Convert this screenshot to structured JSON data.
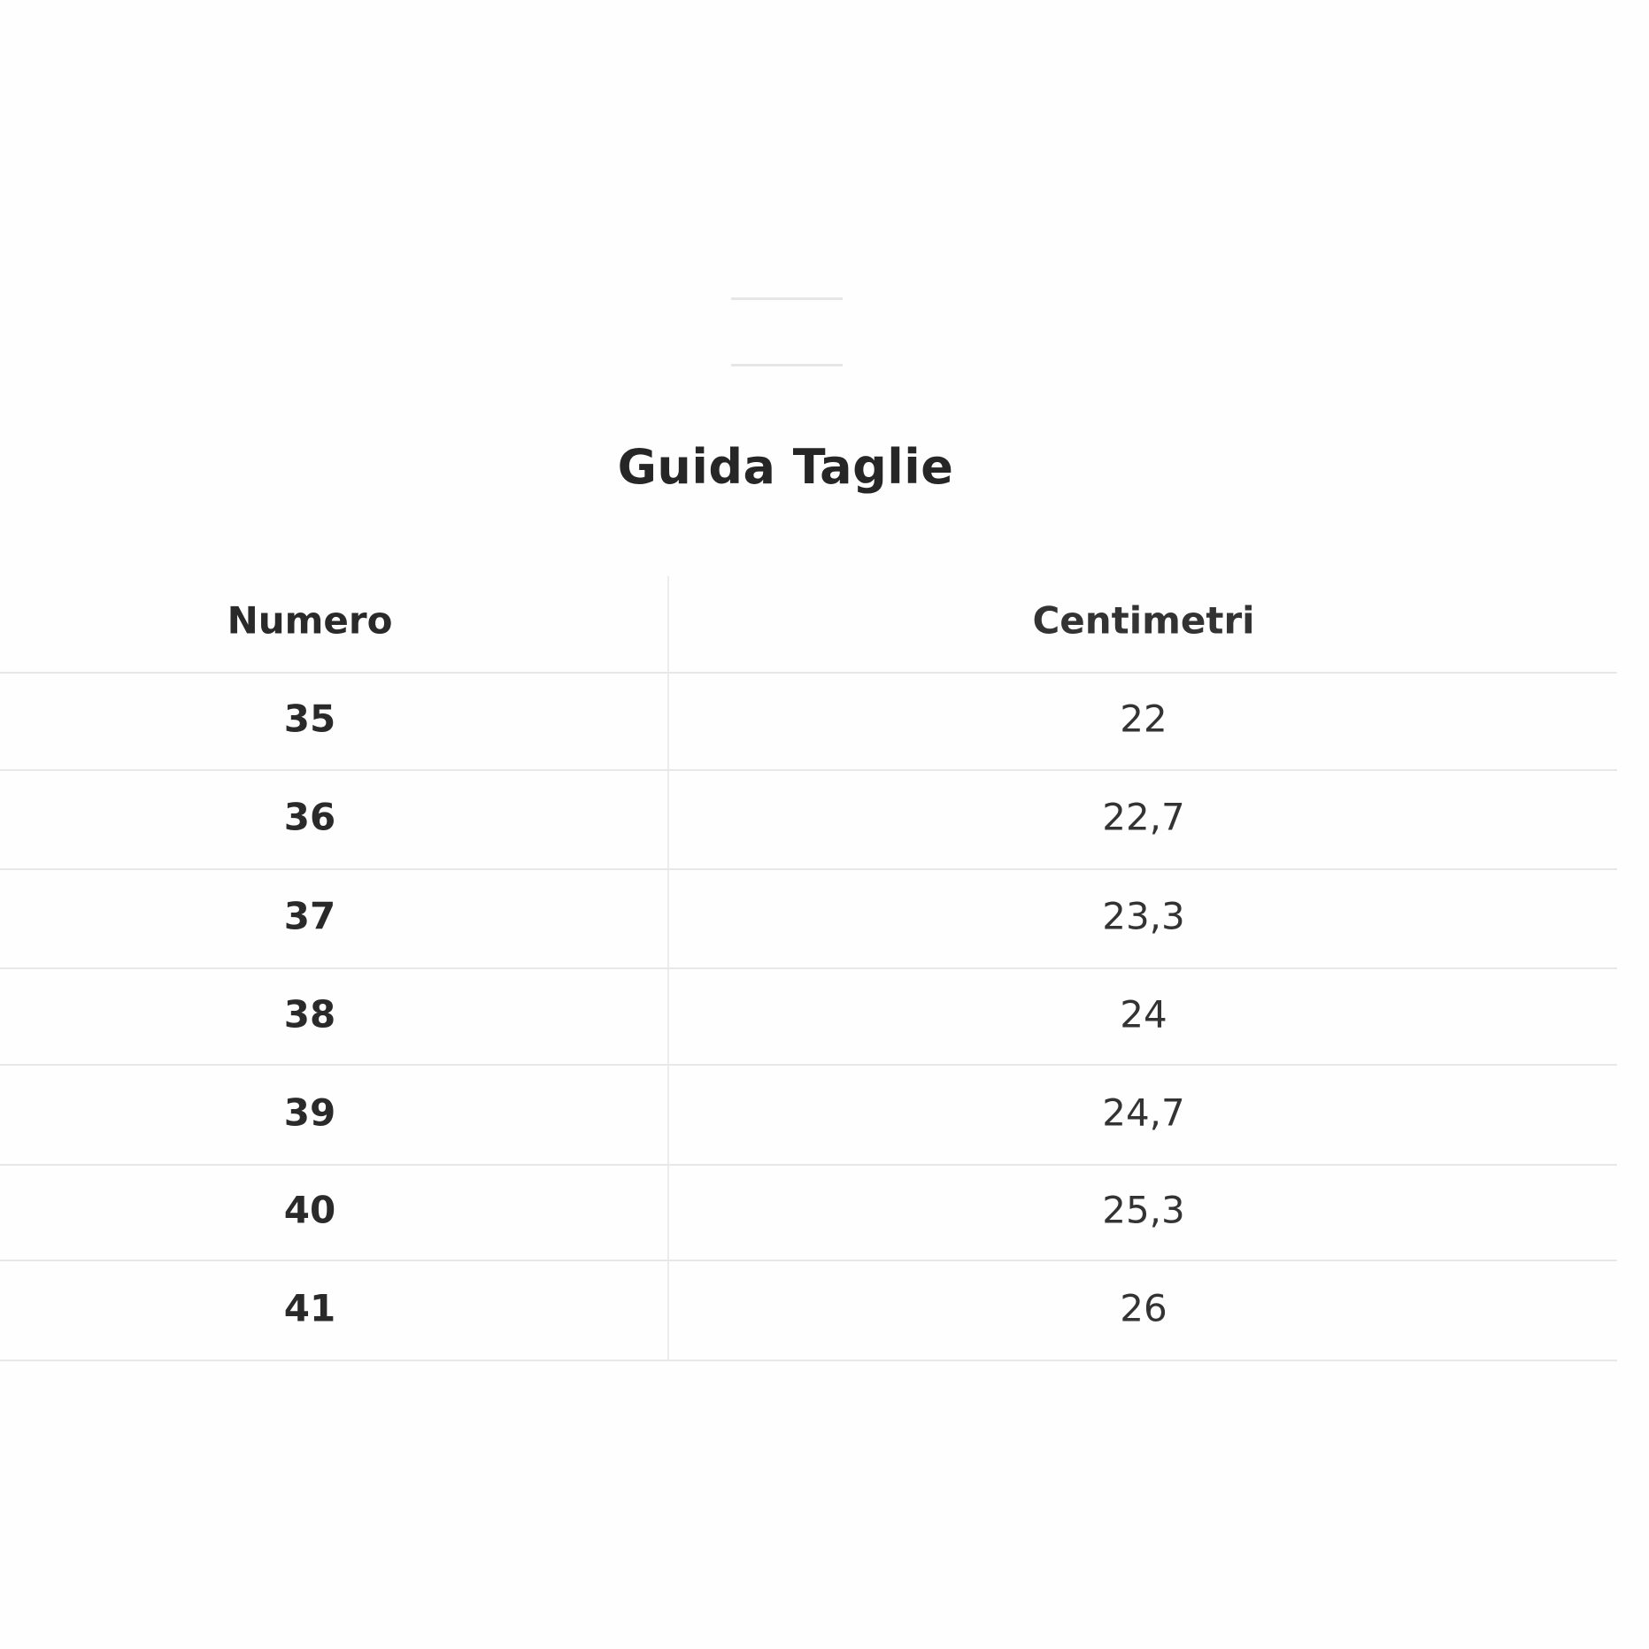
{
  "title": "Guida Taglie",
  "table": {
    "headers": [
      "Numero",
      "Centimetri"
    ],
    "rows": [
      [
        "35",
        "22"
      ],
      [
        "36",
        "22,7"
      ],
      [
        "37",
        "23,3"
      ],
      [
        "38",
        "24"
      ],
      [
        "39",
        "24,7"
      ],
      [
        "40",
        "25,3"
      ],
      [
        "41",
        "26"
      ]
    ]
  }
}
